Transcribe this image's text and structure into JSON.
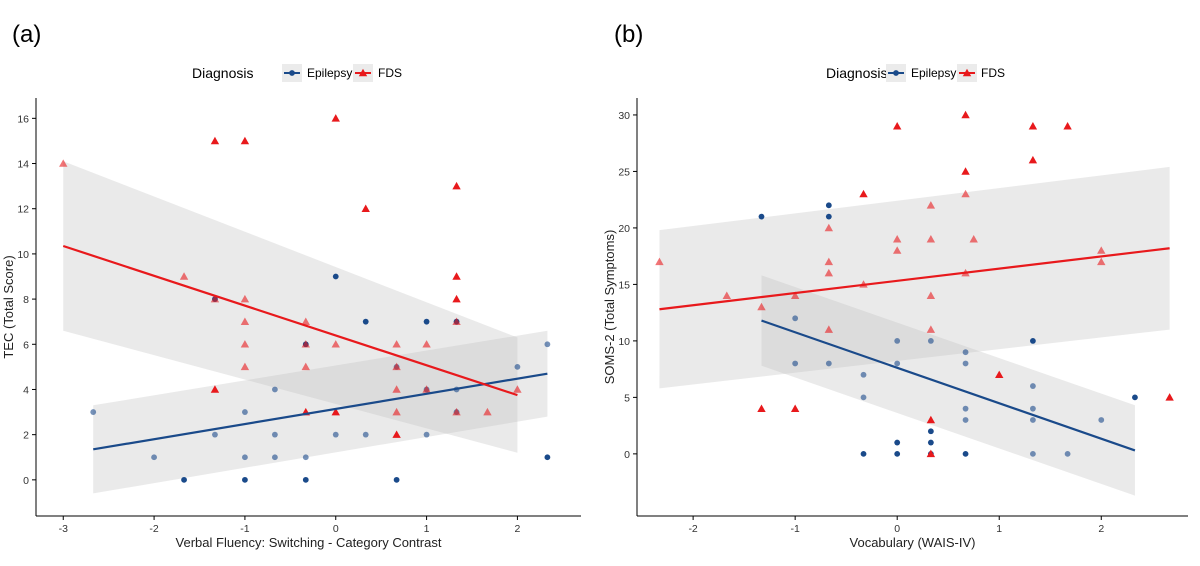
{
  "colors": {
    "epilepsy": "#1a4a8a",
    "fds": "#e8191c",
    "band": "#bdbdbd"
  },
  "chart_data": [
    {
      "type": "scatter",
      "panel_label": "(a)",
      "legend": {
        "title": "Diagnosis",
        "entries": [
          "Epilepsy",
          "FDS"
        ],
        "placement": "top"
      },
      "xlabel": "Verbal Fluency: Switching - Category Contrast",
      "ylabel": "TEC (Total Score)",
      "xlim": [
        -3.3,
        2.7
      ],
      "ylim": [
        -1.6,
        16.9
      ],
      "xticks": [
        -3,
        -2,
        -1,
        0,
        1,
        2
      ],
      "yticks": [
        0,
        2,
        4,
        6,
        8,
        10,
        12,
        14,
        16
      ],
      "series": [
        {
          "name": "Epilepsy",
          "marker": "circle",
          "points": [
            [
              -2.67,
              3
            ],
            [
              -2,
              1
            ],
            [
              -1.67,
              0
            ],
            [
              -1.33,
              2
            ],
            [
              -1.33,
              8
            ],
            [
              -1,
              3
            ],
            [
              -1,
              1
            ],
            [
              -1,
              0
            ],
            [
              -0.67,
              4
            ],
            [
              -0.67,
              2
            ],
            [
              -0.67,
              1
            ],
            [
              -0.33,
              6
            ],
            [
              -0.33,
              1
            ],
            [
              -0.33,
              0
            ],
            [
              0,
              9
            ],
            [
              0,
              2
            ],
            [
              0.33,
              7
            ],
            [
              0.33,
              2
            ],
            [
              0.67,
              5
            ],
            [
              0.67,
              0
            ],
            [
              1,
              7
            ],
            [
              1,
              2
            ],
            [
              1,
              4
            ],
            [
              1.33,
              7
            ],
            [
              1.33,
              4
            ],
            [
              1.33,
              3
            ],
            [
              2,
              5
            ],
            [
              2.33,
              6
            ],
            [
              2.33,
              1
            ]
          ],
          "fit": {
            "x": [
              -2.67,
              2.33
            ],
            "y": [
              1.35,
              4.7
            ],
            "ci_low": [
              -0.6,
              2.8
            ],
            "ci_high": [
              3.3,
              6.6
            ]
          }
        },
        {
          "name": "FDS",
          "marker": "triangle",
          "points": [
            [
              -3,
              14
            ],
            [
              -1.67,
              9
            ],
            [
              -1.33,
              15
            ],
            [
              -1.33,
              8
            ],
            [
              -1.33,
              4
            ],
            [
              -1,
              15
            ],
            [
              -1,
              8
            ],
            [
              -1,
              7
            ],
            [
              -1,
              6
            ],
            [
              -1,
              5
            ],
            [
              -0.33,
              7
            ],
            [
              -0.33,
              6
            ],
            [
              -0.33,
              5
            ],
            [
              -0.33,
              3
            ],
            [
              0,
              16
            ],
            [
              0,
              6
            ],
            [
              0,
              3
            ],
            [
              0.33,
              12
            ],
            [
              0.67,
              6
            ],
            [
              0.67,
              5
            ],
            [
              0.67,
              4
            ],
            [
              0.67,
              3
            ],
            [
              0.67,
              2
            ],
            [
              1,
              6
            ],
            [
              1,
              4
            ],
            [
              1.33,
              13
            ],
            [
              1.33,
              9
            ],
            [
              1.33,
              8
            ],
            [
              1.33,
              7
            ],
            [
              1.33,
              3
            ],
            [
              1.67,
              3
            ],
            [
              2,
              4
            ]
          ],
          "fit": {
            "x": [
              -3,
              2
            ],
            "y": [
              10.35,
              3.75
            ],
            "ci_low": [
              6.6,
              1.2
            ],
            "ci_high": [
              14.1,
              6.3
            ]
          }
        }
      ]
    },
    {
      "type": "scatter",
      "panel_label": "(b)",
      "legend": {
        "title": "Diagnosis",
        "entries": [
          "Epilepsy",
          "FDS"
        ],
        "placement": "top"
      },
      "xlabel": "Vocabulary (WAIS-IV)",
      "ylabel": "SOMS-2 (Total Symptoms)",
      "xlim": [
        -2.55,
        2.85
      ],
      "ylim": [
        -5.5,
        31.5
      ],
      "xticks": [
        -2,
        -1,
        0,
        1,
        2
      ],
      "yticks": [
        0,
        5,
        10,
        15,
        20,
        25,
        30
      ],
      "series": [
        {
          "name": "Epilepsy",
          "marker": "circle",
          "points": [
            [
              -1.33,
              21
            ],
            [
              -1,
              12
            ],
            [
              -1,
              8
            ],
            [
              -0.67,
              22
            ],
            [
              -0.67,
              21
            ],
            [
              -0.67,
              8
            ],
            [
              -0.33,
              7
            ],
            [
              -0.33,
              5
            ],
            [
              -0.33,
              0
            ],
            [
              0,
              10
            ],
            [
              0,
              8
            ],
            [
              0,
              1
            ],
            [
              0,
              0
            ],
            [
              0.33,
              10
            ],
            [
              0.33,
              2
            ],
            [
              0.33,
              1
            ],
            [
              0.33,
              0
            ],
            [
              0.67,
              9
            ],
            [
              0.67,
              8
            ],
            [
              0.67,
              4
            ],
            [
              0.67,
              3
            ],
            [
              0.67,
              0
            ],
            [
              1.33,
              10
            ],
            [
              1.33,
              6
            ],
            [
              1.33,
              4
            ],
            [
              1.33,
              3
            ],
            [
              1.33,
              0
            ],
            [
              1.67,
              0
            ],
            [
              2,
              3
            ],
            [
              2.33,
              5
            ]
          ],
          "fit": {
            "x": [
              -1.33,
              2.33
            ],
            "y": [
              11.8,
              0.3
            ],
            "ci_low": [
              7.8,
              -3.7
            ],
            "ci_high": [
              15.8,
              4.3
            ]
          }
        },
        {
          "name": "FDS",
          "marker": "triangle",
          "points": [
            [
              -2.33,
              17
            ],
            [
              -1.67,
              14
            ],
            [
              -1.33,
              13
            ],
            [
              -1.33,
              4
            ],
            [
              -1,
              14
            ],
            [
              -1,
              4
            ],
            [
              -0.67,
              20
            ],
            [
              -0.67,
              17
            ],
            [
              -0.67,
              16
            ],
            [
              -0.67,
              11
            ],
            [
              -0.33,
              23
            ],
            [
              -0.33,
              15
            ],
            [
              0,
              29
            ],
            [
              0,
              19
            ],
            [
              0,
              18
            ],
            [
              0.33,
              22
            ],
            [
              0.33,
              19
            ],
            [
              0.33,
              14
            ],
            [
              0.33,
              11
            ],
            [
              0.33,
              3
            ],
            [
              0.33,
              0
            ],
            [
              0.67,
              30
            ],
            [
              0.67,
              25
            ],
            [
              0.67,
              23
            ],
            [
              0.67,
              16
            ],
            [
              0.75,
              19
            ],
            [
              1,
              7
            ],
            [
              1.33,
              29
            ],
            [
              1.33,
              26
            ],
            [
              1.67,
              29
            ],
            [
              2,
              18
            ],
            [
              2,
              17
            ],
            [
              2.67,
              5
            ]
          ],
          "fit": {
            "x": [
              -2.33,
              2.67
            ],
            "y": [
              12.8,
              18.2
            ],
            "ci_low": [
              5.8,
              11.0
            ],
            "ci_high": [
              19.8,
              25.4
            ]
          }
        }
      ]
    }
  ]
}
